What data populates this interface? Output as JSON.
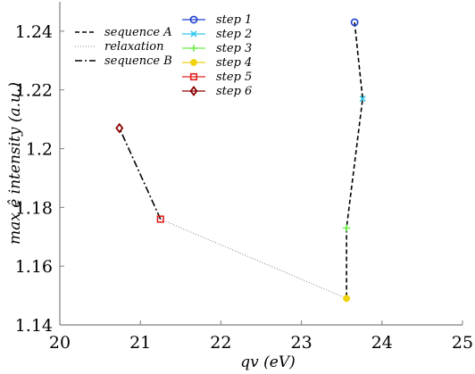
{
  "chart_data": {
    "type": "line",
    "title": "",
    "xlabel": "qv  (eV)",
    "ylabel": "max ê intensity (a.u.)",
    "xlim": [
      20,
      25
    ],
    "ylim": [
      1.14,
      1.25
    ],
    "xticks": [
      "20",
      "21",
      "22",
      "23",
      "24",
      "25"
    ],
    "yticks": [
      "1.14",
      "1.16",
      "1.18",
      "1.2",
      "1.22",
      "1.24"
    ],
    "grid": false,
    "legend_placement": "top-left",
    "lines": [
      {
        "name": "sequence A",
        "style": "dashed",
        "color": "#000000",
        "x": [
          23.66,
          23.76,
          23.56,
          23.56
        ],
        "y": [
          1.243,
          1.217,
          1.173,
          1.149
        ]
      },
      {
        "name": "relaxation",
        "style": "dotted",
        "color": "#808080",
        "x": [
          23.56,
          21.25
        ],
        "y": [
          1.149,
          1.176
        ]
      },
      {
        "name": "sequence B",
        "style": "dashdot",
        "color": "#000000",
        "x": [
          21.25,
          20.74
        ],
        "y": [
          1.176,
          1.207
        ]
      }
    ],
    "series": [
      {
        "name": "step 1",
        "marker": "circle",
        "color": "#1f3fd0",
        "x": [
          23.66
        ],
        "y": [
          1.243
        ]
      },
      {
        "name": "step 2",
        "marker": "x",
        "color": "#33c8ee",
        "x": [
          23.76
        ],
        "y": [
          1.217
        ]
      },
      {
        "name": "step 3",
        "marker": "plus",
        "color": "#6cef4a",
        "x": [
          23.56
        ],
        "y": [
          1.173
        ]
      },
      {
        "name": "step 4",
        "marker": "star",
        "color": "#f0d20f",
        "x": [
          23.56
        ],
        "y": [
          1.149
        ]
      },
      {
        "name": "step 5",
        "marker": "square",
        "color": "#e02020",
        "x": [
          21.25
        ],
        "y": [
          1.176
        ]
      },
      {
        "name": "step 6",
        "marker": "diamond",
        "color": "#8b0000",
        "x": [
          20.74
        ],
        "y": [
          1.207
        ]
      }
    ]
  }
}
